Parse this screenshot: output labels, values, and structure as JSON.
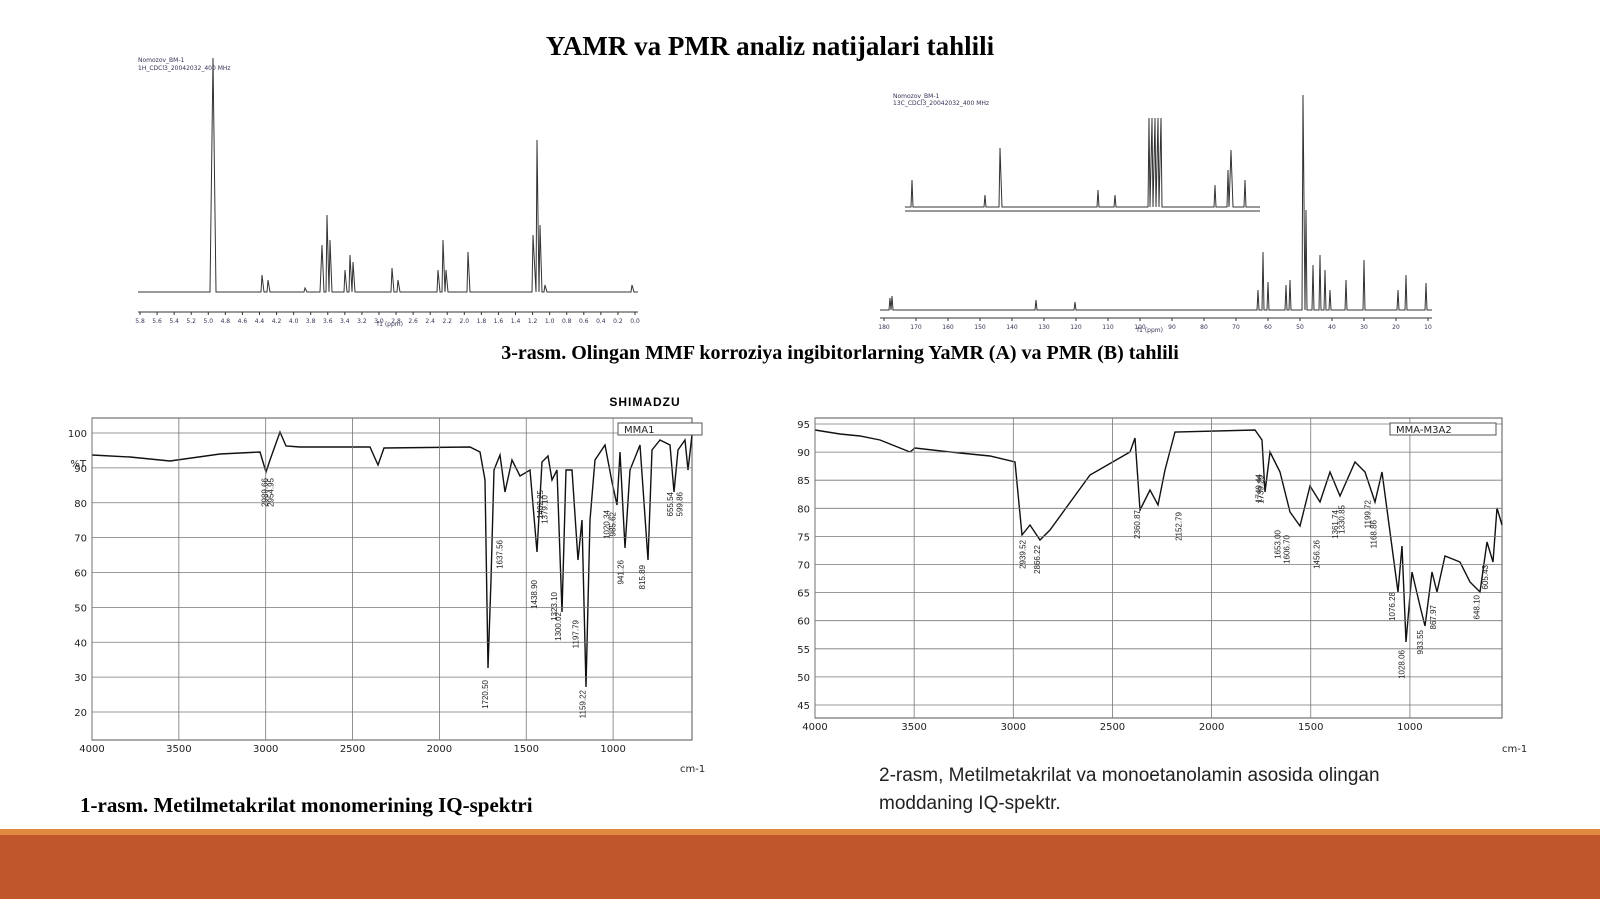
{
  "title": "YAMR va PMR analiz natijalari tahlili",
  "nmr": {
    "caption": "3-rasm. Olingan MMF korroziya ingibitorlarning YaMR (A) va PMR (B) tahlili",
    "h1": {
      "header": [
        "Nomozov_BM-1",
        "1H_CDCl3_20042032_400 MHz"
      ],
      "xlabel": "f1 (ppm)",
      "xticks": [
        "5.8",
        "5.6",
        "5.4",
        "5.2",
        "5.0",
        "4.8",
        "4.6",
        "4.4",
        "4.2",
        "4.0",
        "3.8",
        "3.6",
        "3.4",
        "3.2",
        "3.0",
        "2.8",
        "2.6",
        "2.4",
        "2.2",
        "2.0",
        "1.8",
        "1.6",
        "1.4",
        "1.2",
        "1.0",
        "0.8",
        "0.6",
        "0.4",
        "0.2",
        "0.0"
      ]
    },
    "c13": {
      "header": [
        "Nomozov_BM-1",
        "13C_CDCl3_20042032_400 MHz"
      ],
      "xlabel": "f1 (ppm)",
      "xticks": [
        "180",
        "170",
        "160",
        "150",
        "140",
        "130",
        "120",
        "110",
        "100",
        "90",
        "80",
        "70",
        "60",
        "50",
        "40",
        "30",
        "20",
        "10"
      ]
    }
  },
  "ir1": {
    "brand": "SHIMADZU",
    "legend": "MMA1",
    "ylabel": "%T",
    "xunit": "cm-1",
    "xticks": [
      4000,
      3500,
      3000,
      2500,
      2000,
      1500,
      1000
    ],
    "yticks": [
      100,
      90,
      80,
      70,
      60,
      50,
      40,
      30,
      20
    ],
    "peaks": [
      "2989.66",
      "2954.95",
      "1637.56",
      "1720.50",
      "1438.90",
      "1402.25",
      "1379.10",
      "1323.10",
      "1300.02",
      "1197.79",
      "1159.22",
      "1020.34",
      "985.62",
      "941.26",
      "815.89",
      "655.54",
      "599.86"
    ],
    "caption": "1-rasm. Metilmetakrilat monomerining IQ-spektri"
  },
  "ir2": {
    "legend": "MMA-M3A2",
    "xunit": "cm-1",
    "xticks": [
      4000,
      3500,
      3000,
      2500,
      2000,
      1500,
      1000
    ],
    "yticks": [
      95,
      90,
      85,
      80,
      75,
      70,
      65,
      60,
      55,
      50,
      45
    ],
    "peaks": [
      "2939.52",
      "2866.22",
      "2360.87",
      "2152.79",
      "1749.44",
      "1739.29",
      "1653.00",
      "1606.70",
      "1456.26",
      "1361.74",
      "1330.85",
      "1199.72",
      "1168.86",
      "1076.28",
      "1028.06",
      "933.55",
      "867.97",
      "648.10",
      "605.43"
    ],
    "caption": [
      "2-rasm, Metilmetakrilat va monoetanolamin asosida olingan",
      "moddaning IQ-spektr."
    ]
  }
}
